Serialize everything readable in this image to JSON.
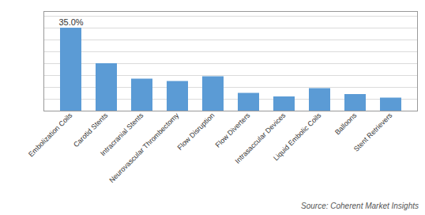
{
  "chart_data": {
    "type": "bar",
    "categories": [
      "Embolization Coils",
      "Carotid Stents",
      "Intracranial Stents",
      "Neurovascular Thrombectomy",
      "Flow Disruption",
      "Flow Diverters",
      "Intrasaccular Devices",
      "Liquid Embolic Coils",
      "Balloons",
      "Stent Retrievers"
    ],
    "values": [
      35.0,
      20.0,
      13.5,
      12.5,
      14.5,
      7.5,
      6.0,
      9.5,
      7.0,
      5.5
    ],
    "color": "#5B9BD5",
    "ylim": [
      0,
      42
    ],
    "yticks": [
      0,
      5,
      10,
      15,
      20,
      25,
      30,
      35,
      40
    ],
    "grid": true,
    "tick_labels": "x",
    "annotations": [
      {
        "category": "Embolization Coils",
        "value": 35.0,
        "text": "35.0%"
      }
    ],
    "source": "Source: Coherent Market Insights"
  }
}
